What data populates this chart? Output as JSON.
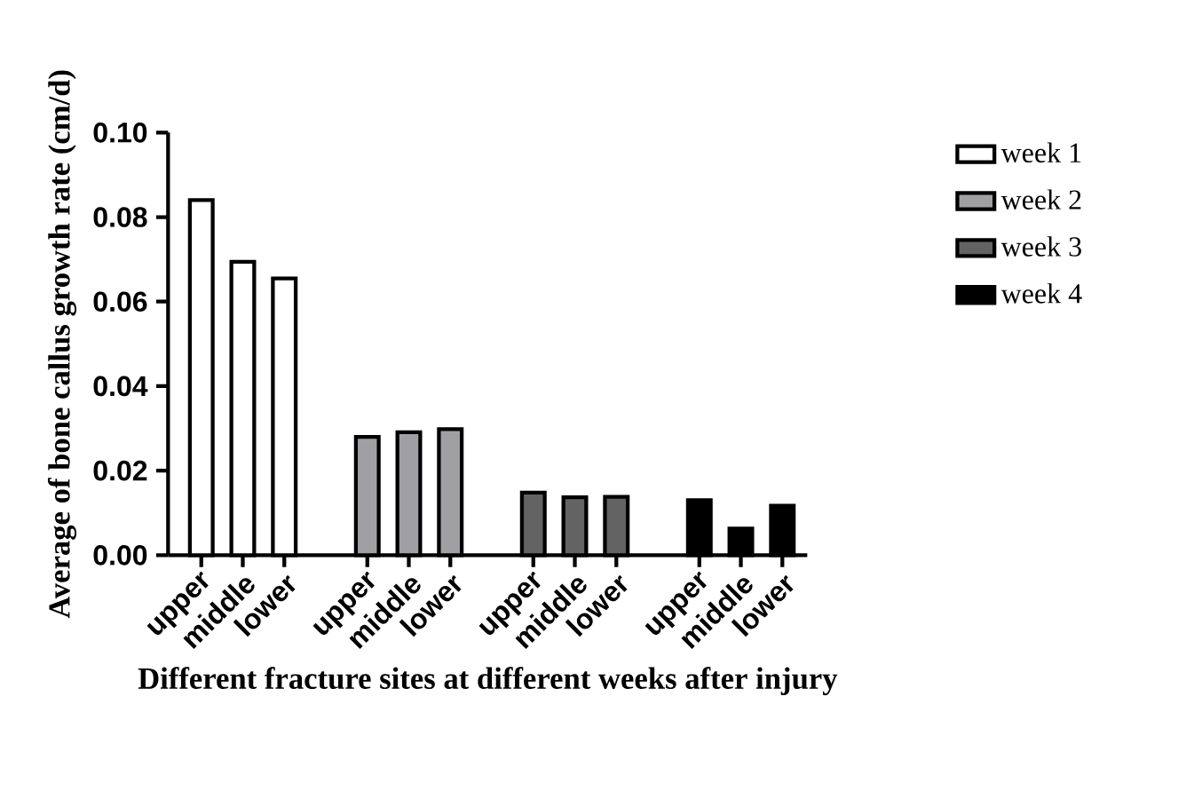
{
  "chart_data": {
    "type": "bar",
    "xlabel": "Different fracture sites at different weeks after injury",
    "ylabel": "Average of bone callus growth rate (cm/d)",
    "categories": [
      "upper",
      "middle",
      "lower",
      null,
      "upper",
      "middle",
      "lower",
      null,
      "upper",
      "middle",
      "lower",
      null,
      "upper",
      "middle",
      "lower"
    ],
    "series": [
      {
        "name": "week 1",
        "color": "#ffffff",
        "values": [
          0.084,
          0.0694,
          0.0655,
          null,
          null,
          null,
          null,
          null,
          null,
          null,
          null,
          null,
          null,
          null,
          null
        ]
      },
      {
        "name": "week 2",
        "color": "#a0a0a4",
        "values": [
          null,
          null,
          null,
          null,
          0.028,
          0.0291,
          0.0298,
          null,
          null,
          null,
          null,
          null,
          null,
          null,
          null
        ]
      },
      {
        "name": "week 3",
        "color": "#636363",
        "values": [
          null,
          null,
          null,
          null,
          null,
          null,
          null,
          null,
          0.0148,
          0.0137,
          0.0138,
          null,
          null,
          null,
          null
        ]
      },
      {
        "name": "week 4",
        "color": "#000000",
        "values": [
          null,
          null,
          null,
          null,
          null,
          null,
          null,
          null,
          null,
          null,
          null,
          null,
          0.013,
          0.0063,
          0.0117
        ]
      }
    ],
    "ylim": [
      0,
      0.1
    ],
    "yticks": [
      {
        "value": 0,
        "label": "0.00"
      },
      {
        "value": 0.02,
        "label": "0.02"
      },
      {
        "value": 0.04,
        "label": "0.04"
      },
      {
        "value": 0.06,
        "label": "0.06"
      },
      {
        "value": 0.08,
        "label": "0.08"
      },
      {
        "value": 0.1,
        "label": "0.10"
      }
    ],
    "legend": "right",
    "grid": false
  }
}
